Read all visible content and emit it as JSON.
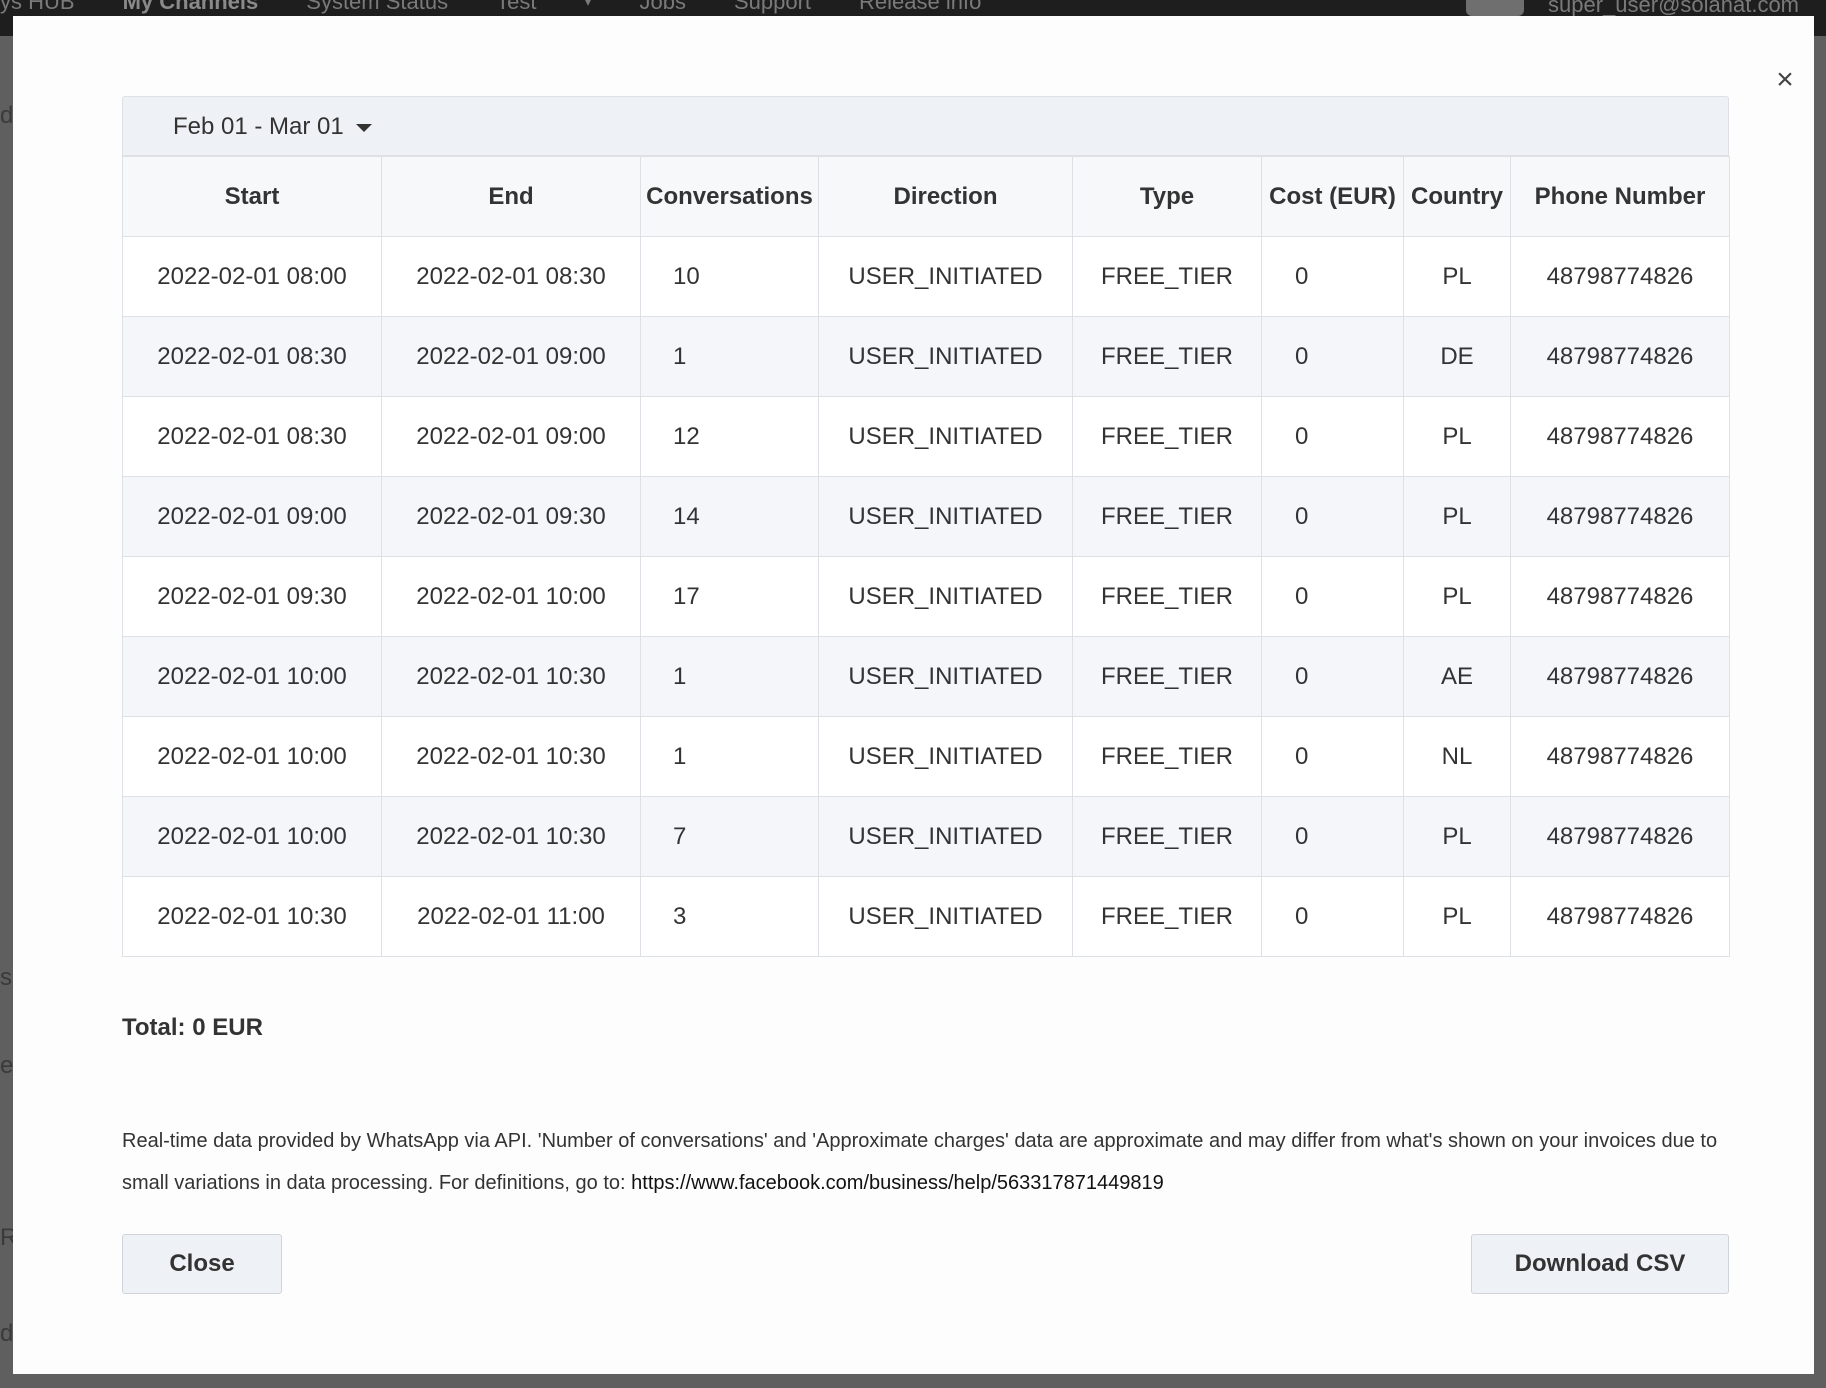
{
  "background": {
    "nav_items": [
      "ys HUB",
      "My Channels",
      "System Status",
      "Test",
      "Jobs",
      "Support",
      "Release info"
    ],
    "user_email": "super_user@solanat.com",
    "side_letters": [
      "d",
      "s",
      "e",
      "R",
      "d"
    ]
  },
  "modal": {
    "date_range": "Feb 01 - Mar 01",
    "columns": [
      "Start",
      "End",
      "Conversations",
      "Direction",
      "Type",
      "Cost (EUR)",
      "Country",
      "Phone Number"
    ],
    "rows": [
      [
        "2022-02-01 08:00",
        "2022-02-01 08:30",
        "10",
        "USER_INITIATED",
        "FREE_TIER",
        "0",
        "PL",
        "48798774826"
      ],
      [
        "2022-02-01 08:30",
        "2022-02-01 09:00",
        "1",
        "USER_INITIATED",
        "FREE_TIER",
        "0",
        "DE",
        "48798774826"
      ],
      [
        "2022-02-01 08:30",
        "2022-02-01 09:00",
        "12",
        "USER_INITIATED",
        "FREE_TIER",
        "0",
        "PL",
        "48798774826"
      ],
      [
        "2022-02-01 09:00",
        "2022-02-01 09:30",
        "14",
        "USER_INITIATED",
        "FREE_TIER",
        "0",
        "PL",
        "48798774826"
      ],
      [
        "2022-02-01 09:30",
        "2022-02-01 10:00",
        "17",
        "USER_INITIATED",
        "FREE_TIER",
        "0",
        "PL",
        "48798774826"
      ],
      [
        "2022-02-01 10:00",
        "2022-02-01 10:30",
        "1",
        "USER_INITIATED",
        "FREE_TIER",
        "0",
        "AE",
        "48798774826"
      ],
      [
        "2022-02-01 10:00",
        "2022-02-01 10:30",
        "1",
        "USER_INITIATED",
        "FREE_TIER",
        "0",
        "NL",
        "48798774826"
      ],
      [
        "2022-02-01 10:00",
        "2022-02-01 10:30",
        "7",
        "USER_INITIATED",
        "FREE_TIER",
        "0",
        "PL",
        "48798774826"
      ],
      [
        "2022-02-01 10:30",
        "2022-02-01 11:00",
        "3",
        "USER_INITIATED",
        "FREE_TIER",
        "0",
        "PL",
        "48798774826"
      ]
    ],
    "total": "Total: 0 EUR",
    "note_text": "Real-time data provided by WhatsApp via API. 'Number of conversations' and 'Approximate charges' data are approximate and may differ from what's shown on your invoices due to small variations in data processing. For definitions, go to: ",
    "note_link": "https://www.facebook.com/business/help/563317871449819",
    "close_label": "Close",
    "download_label": "Download CSV",
    "close_icon": "×"
  }
}
